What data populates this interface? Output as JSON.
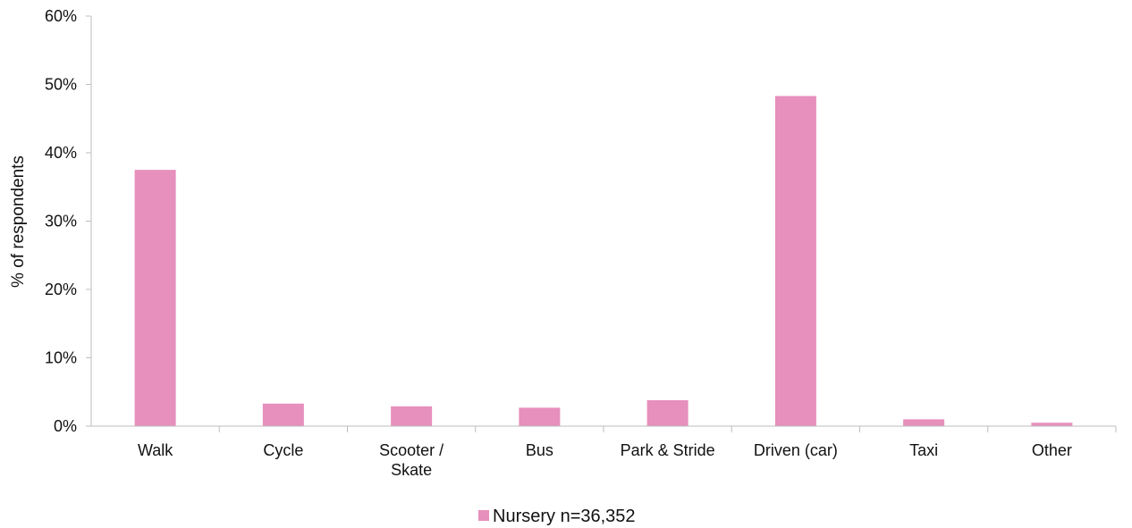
{
  "chart_data": {
    "type": "bar",
    "title": "",
    "xlabel": "",
    "ylabel": "% of respondents",
    "ylim": [
      0,
      60
    ],
    "yticks": [
      "0%",
      "10%",
      "20%",
      "30%",
      "40%",
      "50%",
      "60%"
    ],
    "ytick_values": [
      0,
      10,
      20,
      30,
      40,
      50,
      60
    ],
    "categories": [
      [
        "Walk"
      ],
      [
        "Cycle"
      ],
      [
        "Scooter /",
        "Skate"
      ],
      [
        "Bus"
      ],
      [
        "Park & Stride"
      ],
      [
        "Driven (car)"
      ],
      [
        "Taxi"
      ],
      [
        "Other"
      ]
    ],
    "series": [
      {
        "name": "Nursery n=36,352",
        "color": "#e78fbd",
        "values": [
          37.5,
          3.3,
          2.9,
          2.7,
          3.8,
          48.3,
          1.0,
          0.5
        ]
      }
    ],
    "grid": false,
    "legend_position": "bottom-center"
  }
}
